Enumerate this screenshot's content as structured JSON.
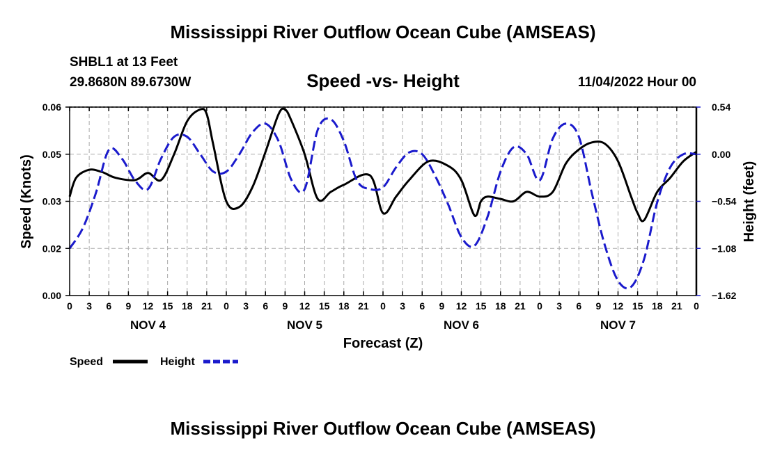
{
  "page": {
    "title": "Mississippi River Outflow Ocean Cube (AMSEAS)",
    "repeat_title": "Mississippi River Outflow Ocean Cube (AMSEAS)"
  },
  "station": {
    "name": "SHBL1 at 13 Feet",
    "coords": "29.8680N  89.6730W",
    "datetime": "11/04/2022 Hour 00"
  },
  "chart_data": {
    "type": "line",
    "title": "Speed -vs- Height",
    "xlabel": "Forecast (Z)",
    "ylabel_left": "Speed (Knots)",
    "ylabel_right": "Height (feet)",
    "x_tick_labels": [
      "0",
      "3",
      "6",
      "9",
      "12",
      "15",
      "18",
      "21",
      "0",
      "3",
      "6",
      "9",
      "12",
      "15",
      "18",
      "21",
      "0",
      "3",
      "6",
      "9",
      "12",
      "15",
      "18",
      "21",
      "0",
      "3",
      "6",
      "9",
      "12",
      "15",
      "18",
      "21",
      "0"
    ],
    "day_labels": [
      {
        "label": "NOV 4",
        "hour": 12
      },
      {
        "label": "NOV 5",
        "hour": 36
      },
      {
        "label": "NOV 6",
        "hour": 60
      },
      {
        "label": "NOV 7",
        "hour": 84
      }
    ],
    "xlim": [
      0,
      96
    ],
    "left_axis": {
      "ticks": [
        "0.06",
        "0.05",
        "0.03",
        "0.02",
        "0.00"
      ],
      "ylim": [
        0,
        4
      ]
    },
    "right_axis": {
      "ticks": [
        "0.54",
        "0.00",
        "−0.54",
        "−1.08",
        "−1.62"
      ],
      "ylim": [
        -1.62,
        0.54
      ]
    },
    "series": [
      {
        "name": "Speed",
        "color": "#000000",
        "dash": "solid",
        "axis": "left",
        "note": "values in left-axis tick index units (0=0.00,1=0.02,2=0.03,3=0.05,4=0.06)",
        "hours": [
          0,
          1,
          3,
          5,
          7,
          10,
          12,
          14,
          16,
          18,
          20,
          21,
          22,
          24,
          26,
          28,
          30,
          32,
          33,
          34,
          36,
          38,
          40,
          42,
          46,
          48,
          50,
          52,
          55,
          58,
          60,
          62,
          63,
          64,
          66,
          68,
          70,
          72,
          74,
          76,
          78,
          80,
          82,
          84,
          86,
          87,
          88,
          90,
          92,
          94,
          96
        ],
        "values": [
          2.1,
          2.5,
          2.67,
          2.62,
          2.5,
          2.45,
          2.6,
          2.45,
          3.0,
          3.7,
          3.95,
          3.85,
          3.2,
          2.0,
          1.88,
          2.3,
          3.05,
          3.85,
          3.95,
          3.7,
          3.0,
          2.05,
          2.2,
          2.35,
          2.55,
          1.75,
          2.1,
          2.45,
          2.85,
          2.75,
          2.45,
          1.7,
          2.0,
          2.1,
          2.05,
          2.0,
          2.2,
          2.1,
          2.2,
          2.8,
          3.1,
          3.25,
          3.22,
          2.85,
          2.1,
          1.75,
          1.6,
          2.2,
          2.5,
          2.85,
          3.05
        ]
      },
      {
        "name": "Height",
        "color": "#1a1acc",
        "dash": "dashed",
        "axis": "right",
        "hours": [
          0,
          2,
          4,
          6,
          8,
          10,
          12,
          14,
          16,
          18,
          20,
          22,
          24,
          26,
          28,
          30,
          32,
          34,
          36,
          38,
          40,
          42,
          44,
          46,
          48,
          50,
          52,
          54,
          56,
          58,
          60,
          62,
          64,
          66,
          68,
          70,
          72,
          74,
          76,
          78,
          80,
          82,
          84,
          86,
          88,
          90,
          92,
          94,
          96
        ],
        "values": [
          -1.08,
          -0.85,
          -0.45,
          0.05,
          -0.05,
          -0.3,
          -0.4,
          -0.05,
          0.2,
          0.2,
          0.0,
          -0.2,
          -0.2,
          0.0,
          0.25,
          0.35,
          0.15,
          -0.3,
          -0.4,
          0.28,
          0.4,
          0.15,
          -0.3,
          -0.4,
          -0.38,
          -0.15,
          0.02,
          0.0,
          -0.25,
          -0.58,
          -0.95,
          -1.05,
          -0.72,
          -0.2,
          0.08,
          0.0,
          -0.3,
          0.18,
          0.35,
          0.2,
          -0.45,
          -1.05,
          -1.45,
          -1.52,
          -1.2,
          -0.55,
          -0.15,
          0.0,
          0.0
        ]
      }
    ],
    "legend": {
      "position": "bottom-left",
      "entries": [
        "Speed",
        "Height"
      ]
    }
  }
}
